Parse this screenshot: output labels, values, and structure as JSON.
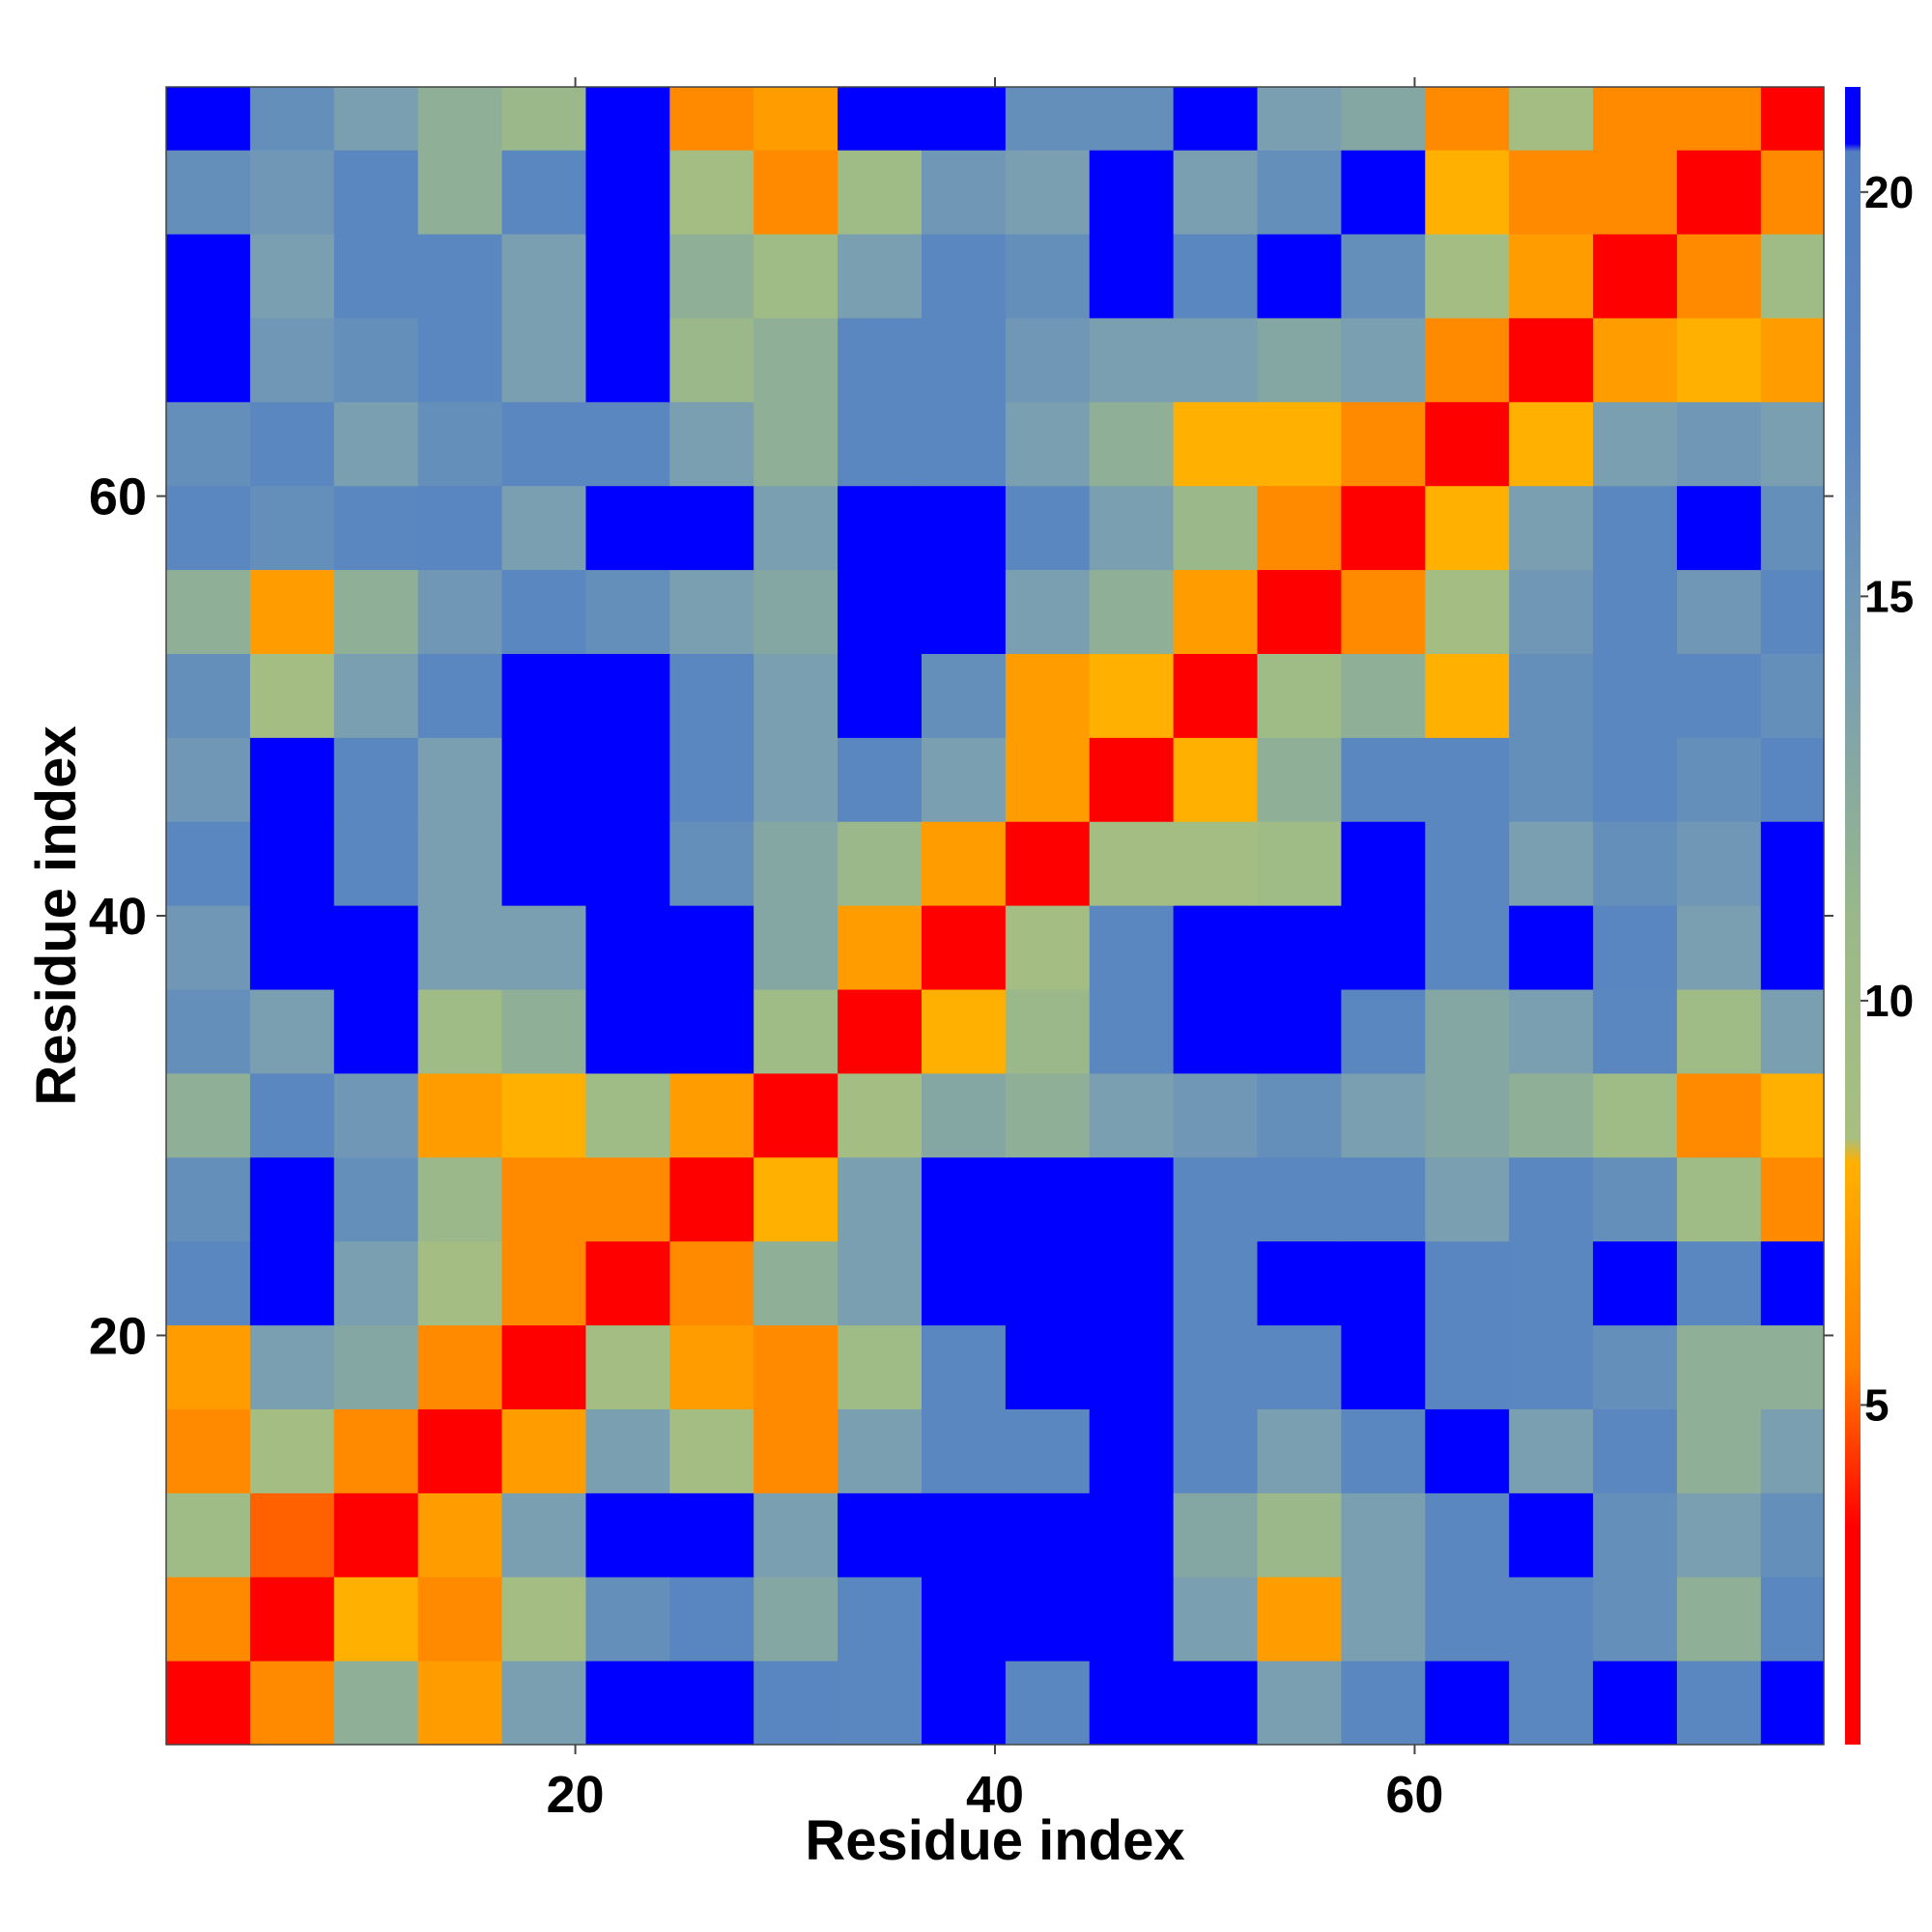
{
  "chart_data": {
    "type": "heatmap",
    "xlabel": "Residue index",
    "ylabel": "Residue index",
    "xlim": [
      0.5,
      79.5
    ],
    "ylim": [
      0.5,
      79.5
    ],
    "xticks": [
      20,
      40,
      60
    ],
    "yticks": [
      20,
      40,
      60
    ],
    "x_edges": [
      0.5,
      4.5,
      8.5,
      12.5,
      16.5,
      20.5,
      24.5,
      28.5,
      32.5,
      36.5,
      40.5,
      44.5,
      48.5,
      52.5,
      56.5,
      60.5,
      64.5,
      68.5,
      72.5,
      76.5,
      79.5
    ],
    "y_edges": [
      0.5,
      4.5,
      8.5,
      12.5,
      16.5,
      20.5,
      24.5,
      28.5,
      32.5,
      36.5,
      40.5,
      44.5,
      48.5,
      52.5,
      56.5,
      60.5,
      64.5,
      68.5,
      72.5,
      76.5,
      79.5
    ],
    "z": [
      [
        3,
        6,
        12,
        7,
        14,
        24,
        24,
        18,
        17,
        24,
        17,
        24,
        24,
        14,
        17,
        24,
        17,
        24,
        17,
        24
      ],
      [
        6,
        3,
        8,
        6,
        9,
        16,
        18,
        13,
        17,
        24,
        24,
        24,
        14,
        7,
        14,
        17,
        17,
        16,
        12,
        17
      ],
      [
        10,
        5,
        3,
        7,
        14,
        24,
        24,
        14,
        24,
        24,
        24,
        24,
        13,
        11,
        14,
        17,
        24,
        16,
        14,
        16
      ],
      [
        6,
        9,
        6,
        3,
        7,
        14,
        9,
        6,
        14,
        17,
        17,
        24,
        17,
        14,
        17,
        24,
        14,
        17,
        12,
        14
      ],
      [
        7,
        14,
        13,
        6,
        3,
        9,
        7,
        6,
        10,
        17,
        24,
        24,
        17,
        17,
        24,
        18,
        17,
        16,
        12,
        12
      ],
      [
        17,
        24,
        14,
        9,
        6,
        3,
        6,
        12,
        14,
        24,
        24,
        24,
        17,
        24,
        24,
        18,
        17,
        24,
        17,
        24
      ],
      [
        16,
        24,
        16,
        11,
        6,
        6,
        3,
        8,
        14,
        24,
        24,
        24,
        17,
        17,
        17,
        14,
        17,
        16,
        10,
        6
      ],
      [
        12,
        17,
        15,
        7,
        8,
        10,
        7,
        3,
        9,
        13,
        12,
        14,
        15,
        16,
        14,
        13,
        12,
        10,
        6,
        8
      ],
      [
        16,
        14,
        24,
        10,
        12,
        24,
        24,
        10,
        3,
        8,
        11,
        17,
        24,
        24,
        17,
        13,
        14,
        17,
        10,
        14
      ],
      [
        15,
        24,
        24,
        14,
        14,
        24,
        24,
        13,
        7,
        3,
        9,
        17,
        24,
        24,
        24,
        17,
        24,
        18,
        14,
        24
      ],
      [
        17,
        24,
        17,
        14,
        24,
        24,
        16,
        13,
        11,
        7,
        3,
        9,
        9,
        10,
        24,
        17,
        14,
        16,
        15,
        24
      ],
      [
        15,
        24,
        17,
        14,
        24,
        24,
        17,
        14,
        17,
        14,
        7,
        3,
        8,
        12,
        17,
        17,
        16,
        17,
        16,
        18
      ],
      [
        16,
        9,
        14,
        17,
        24,
        24,
        17,
        14,
        24,
        16,
        7,
        8,
        3,
        10,
        12,
        8,
        16,
        17,
        17,
        16
      ],
      [
        12,
        7,
        12,
        15,
        17,
        16,
        14,
        13,
        24,
        24,
        14,
        12,
        7,
        3,
        6,
        9,
        15,
        17,
        15,
        17
      ],
      [
        17,
        16,
        17,
        18,
        14,
        24,
        24,
        14,
        24,
        24,
        17,
        14,
        11,
        6,
        3,
        8,
        14,
        17,
        24,
        16
      ],
      [
        16,
        17,
        14,
        16,
        17,
        17,
        14,
        12,
        17,
        17,
        14,
        12,
        8,
        8,
        6,
        3,
        8,
        14,
        15,
        14
      ],
      [
        24,
        15,
        16,
        17,
        14,
        24,
        11,
        12,
        17,
        17,
        15,
        14,
        14,
        13,
        14,
        6,
        3,
        7,
        8,
        7
      ],
      [
        24,
        14,
        17,
        17,
        14,
        24,
        12,
        10,
        14,
        17,
        16,
        24,
        17,
        24,
        16,
        9,
        7,
        3,
        6,
        10
      ],
      [
        16,
        15,
        17,
        12,
        17,
        24,
        9,
        6,
        10,
        15,
        14,
        24,
        14,
        16,
        24,
        8,
        6,
        6,
        3,
        6
      ],
      [
        24,
        16,
        14,
        12,
        11,
        24,
        6,
        7,
        24,
        24,
        16,
        16,
        24,
        14,
        13,
        6,
        9,
        6,
        6,
        3
      ]
    ],
    "clim": [
      0.8,
      21.3
    ],
    "cticks": [
      5,
      10,
      15,
      20
    ],
    "colorscale": [
      [
        0.8,
        "#ff0000"
      ],
      [
        3.5,
        "#ff0000"
      ],
      [
        4.5,
        "#ff4000"
      ],
      [
        5.5,
        "#ff8000"
      ],
      [
        8,
        "#ffb000"
      ],
      [
        8.3,
        "#a8bf80"
      ],
      [
        11,
        "#9ab88a"
      ],
      [
        14,
        "#7a9fb0"
      ],
      [
        17,
        "#5b87c0"
      ],
      [
        20.5,
        "#5580c0"
      ],
      [
        20.6,
        "#0000ff"
      ],
      [
        21.3,
        "#0000ff"
      ]
    ]
  }
}
